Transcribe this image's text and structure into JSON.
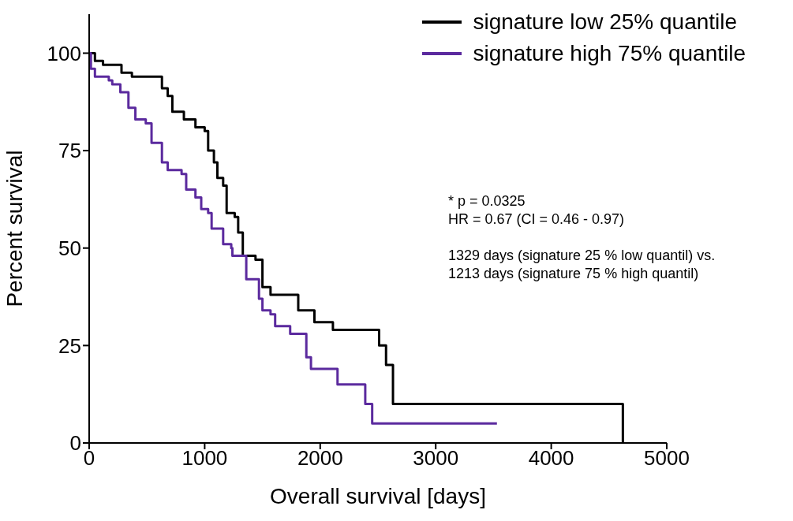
{
  "chart_data": {
    "type": "step",
    "xlabel": "Overall survival [days]",
    "ylabel": "Percent survival",
    "xlim": [
      0,
      5000
    ],
    "xticks": [
      0,
      1000,
      2000,
      3000,
      4000,
      5000
    ],
    "ylim": [
      0,
      110
    ],
    "yticks": [
      0,
      25,
      50,
      75,
      100
    ],
    "grid": false,
    "legend": "top right",
    "marker": "none",
    "line_style": "solid",
    "annotations": [
      "* p = 0.0325",
      "HR = 0.67 (CI = 0.46 - 0.97)",
      "1329 days (signature 25 % low quantil) vs.",
      "1213 days (signature 75 % high quantil)"
    ],
    "series": [
      {
        "name": "signature low 25% quantile",
        "color": "#000000",
        "x": [
          0,
          50,
          120,
          280,
          370,
          630,
          680,
          720,
          820,
          920,
          1000,
          1030,
          1080,
          1110,
          1160,
          1190,
          1260,
          1290,
          1330,
          1440,
          1500,
          1570,
          1810,
          1950,
          2110,
          2510,
          2570,
          2630,
          4620
        ],
        "values": [
          100,
          98,
          97,
          95,
          94,
          91,
          89,
          85,
          83,
          81,
          80,
          75,
          72,
          68,
          66,
          59,
          58,
          54,
          48,
          47,
          40,
          38,
          34,
          31,
          29,
          25,
          20,
          10,
          0
        ]
      },
      {
        "name": "signature high 75% quantile",
        "color": "#5b2a9e",
        "x": [
          0,
          15,
          50,
          170,
          200,
          270,
          340,
          400,
          490,
          540,
          630,
          680,
          800,
          840,
          920,
          970,
          1030,
          1060,
          1160,
          1230,
          1240,
          1360,
          1470,
          1500,
          1570,
          1610,
          1740,
          1880,
          1920,
          2150,
          2390,
          2450,
          3530
        ],
        "values": [
          100,
          96,
          94,
          93,
          92,
          90,
          86,
          83,
          82,
          77,
          72,
          70,
          69,
          65,
          63,
          60,
          59,
          55,
          51,
          50,
          48,
          42,
          37,
          34,
          33,
          30,
          28,
          22,
          19,
          15,
          10,
          5,
          5
        ]
      }
    ]
  }
}
